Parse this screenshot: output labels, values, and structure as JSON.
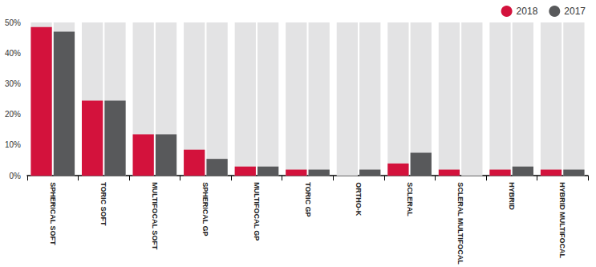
{
  "chart_data": {
    "type": "bar",
    "categories": [
      "SPHERICAL SOFT",
      "TORIC SOFT",
      "MULTIFOCAL SOFT",
      "SPHERICAL GP",
      "MULTIFOCAL GP",
      "TORIC GP",
      "ORTHO-K",
      "SCLERAL",
      "SCLERAL MULTIFOCAL",
      "HYBRID",
      "HYBRID MULTIFOCAL"
    ],
    "series": [
      {
        "name": "2018",
        "color": "#d3123c",
        "values": [
          48.5,
          24.5,
          13.5,
          8.5,
          3,
          2,
          0,
          4,
          2,
          2,
          2
        ]
      },
      {
        "name": "2017",
        "color": "#58595b",
        "values": [
          47,
          24.5,
          13.5,
          5.5,
          3,
          2,
          2,
          7.5,
          0,
          3,
          2
        ]
      }
    ],
    "ylim": [
      0,
      50
    ],
    "yticks": [
      {
        "value": 0,
        "label": "0%"
      },
      {
        "value": 10,
        "label": "10%"
      },
      {
        "value": 20,
        "label": "20%"
      },
      {
        "value": 30,
        "label": "30%"
      },
      {
        "value": 40,
        "label": "40%"
      },
      {
        "value": 50,
        "label": "50%"
      }
    ],
    "grid": false,
    "legend": "top-right"
  }
}
